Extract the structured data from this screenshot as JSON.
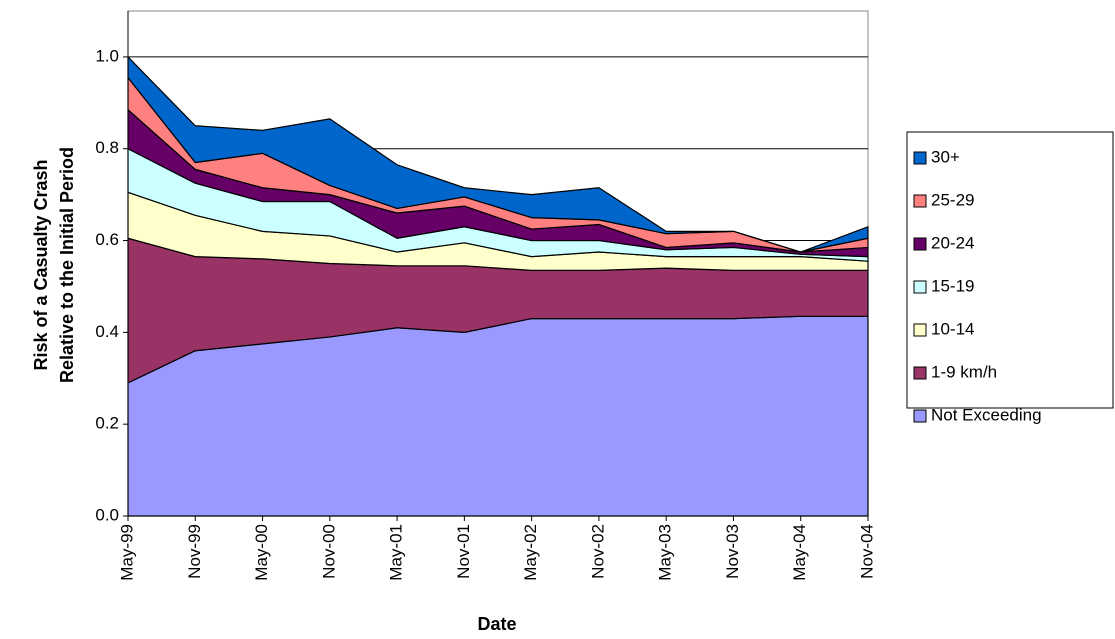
{
  "chart_data": {
    "type": "stacked-area",
    "x_label": "Date",
    "y_label": [
      "Risk of a Casualty Crash",
      "Relative to the Initial Period"
    ],
    "categories": [
      "May-99",
      "Nov-99",
      "May-00",
      "Nov-00",
      "May-01",
      "Nov-01",
      "May-02",
      "Nov-02",
      "May-03",
      "Nov-03",
      "May-04",
      "Nov-04"
    ],
    "series": [
      {
        "name": "Not Exceeding",
        "color": "#9999ff",
        "values": [
          0.29,
          0.36,
          0.375,
          0.39,
          0.41,
          0.4,
          0.43,
          0.43,
          0.43,
          0.43,
          0.435,
          0.435
        ]
      },
      {
        "name": "1-9 km/h",
        "color": "#993366",
        "values": [
          0.315,
          0.205,
          0.185,
          0.16,
          0.135,
          0.145,
          0.105,
          0.105,
          0.11,
          0.105,
          0.1,
          0.1
        ]
      },
      {
        "name": "10-14",
        "color": "#ffffcc",
        "values": [
          0.1,
          0.09,
          0.06,
          0.06,
          0.03,
          0.05,
          0.03,
          0.04,
          0.025,
          0.03,
          0.03,
          0.02
        ]
      },
      {
        "name": "15-19",
        "color": "#ccffff",
        "values": [
          0.095,
          0.07,
          0.065,
          0.075,
          0.03,
          0.035,
          0.035,
          0.025,
          0.015,
          0.02,
          0.005,
          0.01
        ]
      },
      {
        "name": "20-24",
        "color": "#660066",
        "values": [
          0.085,
          0.03,
          0.03,
          0.015,
          0.055,
          0.045,
          0.025,
          0.035,
          0.005,
          0.01,
          0.005,
          0.02
        ]
      },
      {
        "name": "25-29",
        "color": "#ff8080",
        "values": [
          0.07,
          0.015,
          0.075,
          0.02,
          0.01,
          0.02,
          0.025,
          0.01,
          0.03,
          0.025,
          0,
          0.02
        ]
      },
      {
        "name": "30+",
        "color": "#0066cc",
        "values": [
          0.045,
          0.08,
          0.05,
          0.145,
          0.095,
          0.02,
          0.05,
          0.07,
          0.005,
          0,
          0,
          0.025
        ]
      }
    ],
    "ylim": [
      0,
      1.1
    ],
    "yticks": [
      {
        "value": 0,
        "label": "0.0"
      },
      0.2,
      0.4,
      0.6,
      0.8,
      {
        "value": 1,
        "label": "1.0"
      }
    ],
    "grid": true
  }
}
